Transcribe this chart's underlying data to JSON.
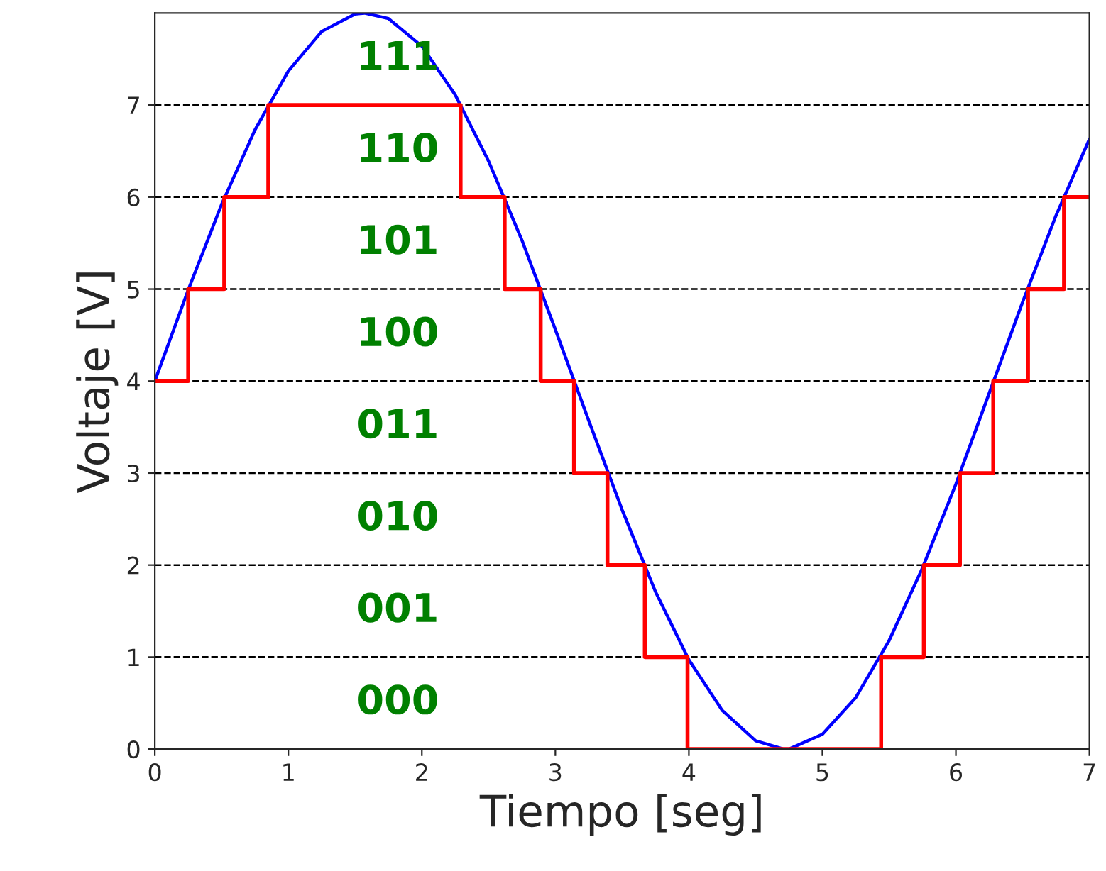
{
  "chart_data": {
    "type": "line",
    "xlabel": "Tiempo [seg]",
    "ylabel": "Voltaje [V]",
    "xlim": [
      0,
      7
    ],
    "ylim": [
      0,
      8
    ],
    "xticks": [
      0,
      1,
      2,
      3,
      4,
      5,
      6,
      7
    ],
    "yticks": [
      0,
      1,
      2,
      3,
      4,
      5,
      6,
      7
    ],
    "grid": false,
    "legend": false,
    "series": [
      {
        "color": "#0000ff",
        "x": [
          0,
          0.25,
          0.5,
          0.75,
          1,
          1.25,
          1.5,
          1.57,
          1.75,
          2,
          2.25,
          2.5,
          2.75,
          3,
          3.25,
          3.5,
          3.75,
          4,
          4.25,
          4.5,
          4.71,
          4.75,
          5,
          5.25,
          5.5,
          5.75,
          6,
          6.25,
          6.5,
          6.75,
          7
        ],
        "values": [
          4,
          4.99,
          5.92,
          6.73,
          7.37,
          7.8,
          7.99,
          8,
          7.94,
          7.64,
          7.11,
          6.39,
          5.53,
          4.56,
          3.57,
          2.6,
          1.71,
          0.97,
          0.42,
          0.09,
          0,
          0,
          0.16,
          0.56,
          1.18,
          1.97,
          2.88,
          3.87,
          4.86,
          5.8,
          6.63
        ]
      },
      {
        "type": "step",
        "color": "#ff0000",
        "x": [
          0,
          0.25,
          0.52,
          0.85,
          2.29,
          2.62,
          2.89,
          3.14,
          3.39,
          3.67,
          3.99,
          5.44,
          5.76,
          6.03,
          6.28,
          6.54,
          6.81,
          7
        ],
        "values": [
          4,
          5,
          6,
          7,
          6,
          5,
          4,
          3,
          2,
          1,
          0,
          1,
          2,
          3,
          4,
          5,
          6,
          6
        ]
      }
    ],
    "ref_lines": [
      {
        "axis": "y",
        "value": 1,
        "color": "#000000",
        "line_style": "dashed"
      },
      {
        "axis": "y",
        "value": 2,
        "color": "#000000",
        "line_style": "dashed"
      },
      {
        "axis": "y",
        "value": 3,
        "color": "#000000",
        "line_style": "dashed"
      },
      {
        "axis": "y",
        "value": 4,
        "color": "#000000",
        "line_style": "dashed"
      },
      {
        "axis": "y",
        "value": 5,
        "color": "#000000",
        "line_style": "dashed"
      },
      {
        "axis": "y",
        "value": 6,
        "color": "#000000",
        "line_style": "dashed"
      },
      {
        "axis": "y",
        "value": 7,
        "color": "#000000",
        "line_style": "dashed"
      }
    ],
    "annotations": [
      "000",
      "001",
      "010",
      "011",
      "100",
      "101",
      "110",
      "111"
    ]
  }
}
